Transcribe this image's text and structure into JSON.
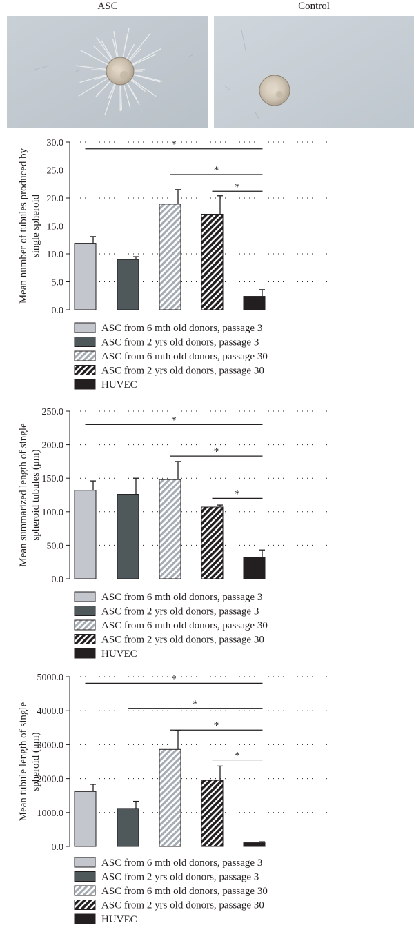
{
  "photos": [
    {
      "label": "ASC"
    },
    {
      "label": "Control"
    }
  ],
  "legend_entries": [
    {
      "label": "ASC from 6 mth old donors, passage 3",
      "color": "#c3c6cc",
      "pattern": "solid"
    },
    {
      "label": "ASC from 2 yrs old donors, passage 3",
      "color": "#4f595b",
      "pattern": "solid"
    },
    {
      "label": "ASC from 6 mth old donors, passage 30",
      "color": "#a5acb3",
      "pattern": "hatch-light"
    },
    {
      "label": "ASC from 2 yrs old donors, passage 30",
      "color": "#231f20",
      "pattern": "hatch-dark"
    },
    {
      "label": "HUVEC",
      "color": "#231f20",
      "pattern": "solid"
    }
  ],
  "chart_data": [
    {
      "type": "bar",
      "ylabel": [
        "Mean number of tubules produced by",
        "single spheroid"
      ],
      "ylim": [
        0,
        30
      ],
      "yticks": [
        0,
        5,
        10,
        15,
        20,
        25,
        30
      ],
      "ytick_labels": [
        "0.0",
        "5.0",
        "10.0",
        "15.0",
        "20.0",
        "25.0",
        "30.0"
      ],
      "grid": "dotted",
      "legend": "below",
      "values": [
        11.9,
        9.0,
        18.9,
        17.1,
        2.4
      ],
      "errors": [
        1.2,
        0.5,
        2.6,
        3.3,
        1.2
      ],
      "significance": [
        {
          "from": 0,
          "to": 4,
          "y": 28.8,
          "label": "*"
        },
        {
          "from": 2,
          "to": 4,
          "y": 24.2,
          "label": "*"
        },
        {
          "from": 3,
          "to": 4,
          "y": 21.2,
          "label": "*"
        }
      ]
    },
    {
      "type": "bar",
      "ylabel": [
        "Mean summarized length of single",
        "spheroid tubules (μm)"
      ],
      "ylim": [
        0,
        250
      ],
      "yticks": [
        0,
        50,
        100,
        150,
        200,
        250
      ],
      "ytick_labels": [
        "0.0",
        "50.0",
        "100.0",
        "150.0",
        "200.0",
        "250.0"
      ],
      "grid": "dotted",
      "legend": "below",
      "values": [
        132,
        126,
        148,
        107,
        32
      ],
      "errors": [
        14,
        24,
        27,
        3,
        11
      ],
      "significance": [
        {
          "from": 0,
          "to": 4,
          "y": 230,
          "label": "*"
        },
        {
          "from": 2,
          "to": 4,
          "y": 183,
          "label": "*"
        },
        {
          "from": 3,
          "to": 4,
          "y": 120,
          "label": "*"
        }
      ]
    },
    {
      "type": "bar",
      "ylabel": [
        "Mean tubule length of single",
        "spheroid (μm)"
      ],
      "ylim": [
        0,
        5000
      ],
      "yticks": [
        0,
        1000,
        2000,
        3000,
        4000,
        5000
      ],
      "ytick_labels": [
        "0.0",
        "1000.0",
        "2000.0",
        "3000.0",
        "4000.0",
        "5000.0"
      ],
      "grid": "dotted",
      "legend": "below",
      "values": [
        1620,
        1120,
        2860,
        1950,
        110
      ],
      "errors": [
        210,
        210,
        560,
        420,
        30
      ],
      "significance": [
        {
          "from": 0,
          "to": 4,
          "y": 4810,
          "label": "*"
        },
        {
          "from": 1,
          "to": 4,
          "y": 4060,
          "label": "*"
        },
        {
          "from": 2,
          "to": 4,
          "y": 3430,
          "label": "*"
        },
        {
          "from": 3,
          "to": 4,
          "y": 2550,
          "label": "*"
        }
      ]
    }
  ]
}
